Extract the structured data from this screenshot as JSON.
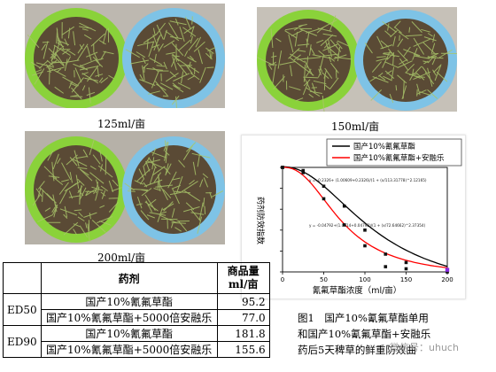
{
  "photos": {
    "panel_1_caption": "125ml/亩",
    "panel_2_caption": "150ml/亩",
    "panel_3_caption": "200ml/亩"
  },
  "colors": {
    "green_bowl": "#8ad23a",
    "blue_bowl": "#7ec3e6",
    "soil": "#5a4a35",
    "seedling": "#a9c56a",
    "series_1": "#000000",
    "series_2": "#ff0000",
    "fit_1": "#1a1a1a",
    "fit_2": "#1a1a1a"
  },
  "chart_data": {
    "type": "line",
    "xlabel": "氰氟草酯浓度（ml/亩）",
    "ylabel": "药剂防效指数",
    "xlim": [
      0,
      200
    ],
    "ylim": [
      0,
      1.0
    ],
    "legend_position": "top-right",
    "series": [
      {
        "name": "国产10%氰氟草酯",
        "points": [
          [
            0,
            1.0
          ],
          [
            25,
            0.97
          ],
          [
            50,
            0.82
          ],
          [
            75,
            0.63
          ],
          [
            100,
            0.4
          ],
          [
            125,
            0.17
          ],
          [
            150,
            0.09
          ],
          [
            200,
            0.01
          ]
        ]
      },
      {
        "name": "国产10%氰氟草酯+安融乐",
        "points": [
          [
            0,
            1.0
          ],
          [
            25,
            0.95
          ],
          [
            50,
            0.7
          ],
          [
            75,
            0.45
          ],
          [
            100,
            0.25
          ],
          [
            125,
            0.05
          ],
          [
            150,
            0.03
          ],
          [
            200,
            0.0
          ]
        ]
      }
    ],
    "equation_1": "y = -0.2326+ (1.00609+0.2326)/(1 + (x/113.31778)^2.12165)",
    "equation_2": "y = -0.04792+(1.0014+0.04792)/(1 + (x/72.64662)^2.37354)"
  },
  "figure_caption": {
    "line1": "图1　国产10%氰氟草酯单用",
    "line2": "和国产10%氰氟草酯+安融乐",
    "line3": "药后5天稗草的鲜重防效曲"
  },
  "watermark": "微信号：uhuch",
  "table": {
    "header_reagent": "药剂",
    "header_yield_line1": "商品量",
    "header_yield_line2": "ml/亩",
    "groups": [
      {
        "label": "ED50",
        "rows": [
          {
            "reagent": "国产10%氰氟草酯",
            "value": "95.2"
          },
          {
            "reagent": "国产10%氰氟草酯+5000倍安融乐",
            "value": "77.0"
          }
        ]
      },
      {
        "label": "ED90",
        "rows": [
          {
            "reagent": "国产10%氰氟草酯",
            "value": "181.8"
          },
          {
            "reagent": "国产10%氰氟草酯+5000倍安融乐",
            "value": "155.6"
          }
        ]
      }
    ]
  }
}
